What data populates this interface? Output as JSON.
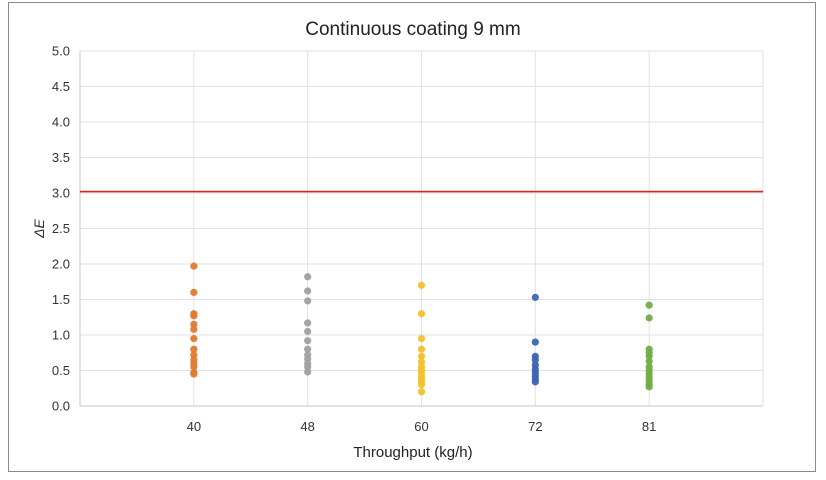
{
  "chart_data": {
    "type": "scatter",
    "title": "Continuous coating 9 mm",
    "xlabel": "Throughput (kg/h)",
    "ylabel": "ΔE",
    "ylim": [
      0,
      5
    ],
    "yticks": [
      "0.0",
      "0.5",
      "1.0",
      "1.5",
      "2.0",
      "2.5",
      "3.0",
      "3.5",
      "4.0",
      "4.5",
      "5.0"
    ],
    "categories": [
      "40",
      "48",
      "60",
      "72",
      "81"
    ],
    "grid": true,
    "reference_line": {
      "y": 3.02,
      "color": "#d62a20"
    },
    "series": [
      {
        "name": "40",
        "color": "#e07a30",
        "values": [
          1.97,
          1.6,
          1.3,
          1.27,
          1.15,
          1.08,
          0.95,
          0.8,
          0.72,
          0.65,
          0.6,
          0.55,
          0.47,
          0.45
        ]
      },
      {
        "name": "48",
        "color": "#a0a0a0",
        "values": [
          1.82,
          1.62,
          1.48,
          1.17,
          1.05,
          0.92,
          0.8,
          0.72,
          0.66,
          0.6,
          0.55,
          0.48
        ]
      },
      {
        "name": "60",
        "color": "#f2c12e",
        "values": [
          1.7,
          1.3,
          0.95,
          0.8,
          0.7,
          0.62,
          0.55,
          0.5,
          0.45,
          0.4,
          0.35,
          0.3,
          0.2
        ]
      },
      {
        "name": "72",
        "color": "#3d64b4",
        "values": [
          1.53,
          0.9,
          0.7,
          0.65,
          0.58,
          0.52,
          0.47,
          0.42,
          0.38,
          0.34
        ]
      },
      {
        "name": "81",
        "color": "#72ad45",
        "values": [
          1.42,
          1.24,
          0.8,
          0.75,
          0.7,
          0.63,
          0.55,
          0.5,
          0.45,
          0.4,
          0.35,
          0.3,
          0.27
        ]
      }
    ]
  }
}
